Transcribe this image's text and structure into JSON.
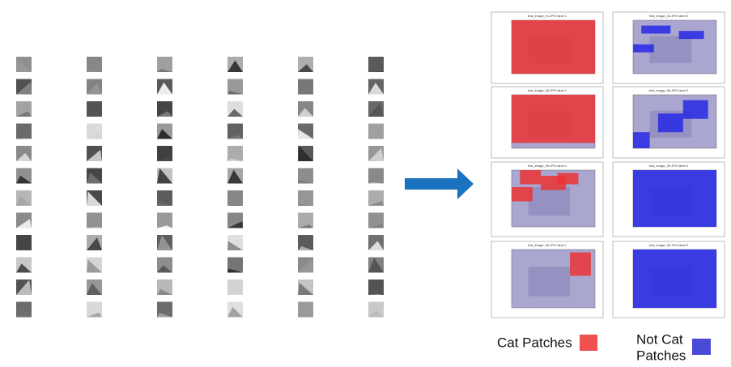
{
  "panels": [
    {
      "title": "test_image_01.JPG label 1"
    },
    {
      "title": "test_image_01.JPG label 0"
    },
    {
      "title": "test_image_08.JPG label 1"
    },
    {
      "title": "test_image_08.JPG label 0"
    },
    {
      "title": "test_image_09.JPG label 1"
    },
    {
      "title": "test_image_09.JPG label 0"
    },
    {
      "title": "test_image_06.JPG label 1"
    },
    {
      "title": "test_image_06.JPG label 0"
    }
  ],
  "legend": {
    "cat": "Cat Patches",
    "not_cat_line1": "Not Cat",
    "not_cat_line2": "Patches"
  }
}
